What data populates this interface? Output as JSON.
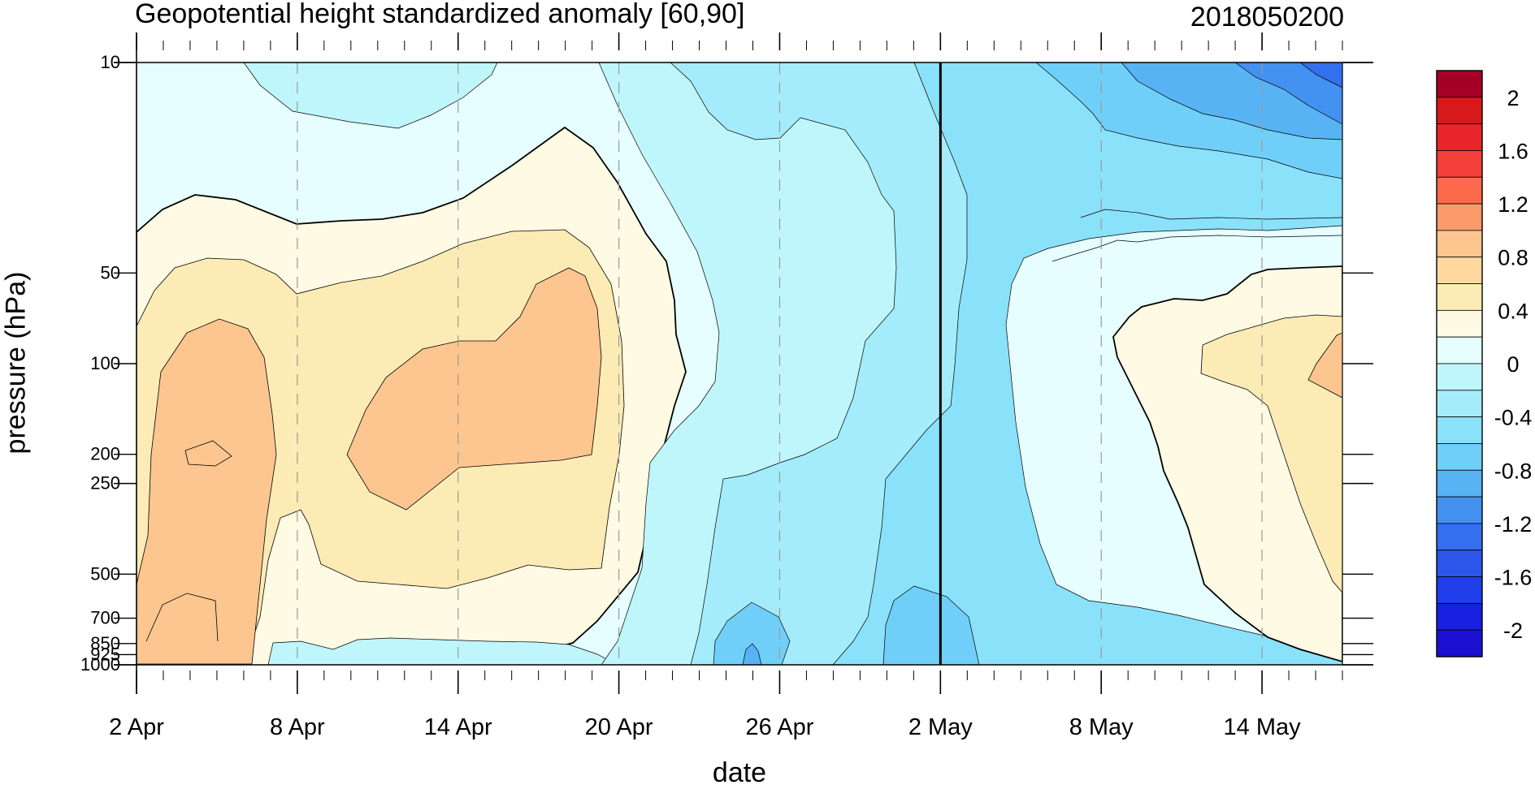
{
  "chart_data": {
    "type": "heatmap",
    "subtype": "filled-contour",
    "title": "Geopotential height standardized anomaly [60,90]",
    "right_title": "2018050200",
    "xlabel": "date",
    "ylabel": "pressure (hPa)",
    "x_tick_labels": [
      "2 Apr",
      "8 Apr",
      "14 Apr",
      "20 Apr",
      "26 Apr",
      "2 May",
      "8 May",
      "14 May"
    ],
    "x_range": [
      "2 Apr",
      "17 May"
    ],
    "y_tick_labels": [
      "10",
      "50",
      "100",
      "200",
      "250",
      "500",
      "700",
      "850",
      "925",
      "1000"
    ],
    "y_scale": "log",
    "y_range": [
      1000,
      10
    ],
    "current_date_marker": "2 May",
    "grid": "dashed vertical lines at labelled dates",
    "colorbar": {
      "position": "right",
      "labels": [
        "2",
        "1.6",
        "1.2",
        "0.8",
        "0.4",
        "0",
        "-0.4",
        "-0.8",
        "-1.2",
        "-1.6",
        "-2"
      ],
      "levels": [
        2.2,
        2.0,
        1.8,
        1.6,
        1.4,
        1.2,
        1.0,
        0.8,
        0.6,
        0.4,
        0.2,
        0.0,
        -0.2,
        -0.4,
        -0.6,
        -0.8,
        -1.0,
        -1.2,
        -1.4,
        -1.6,
        -1.8,
        -2.0,
        -2.2
      ],
      "colors": [
        "#a50026",
        "#d7191c",
        "#e8252b",
        "#f4403a",
        "#fb6a4a",
        "#fc9a6b",
        "#fdc690",
        "#fed89f",
        "#fcebb5",
        "#fffae4",
        "#e6feff",
        "#bff6fc",
        "#a4ecfb",
        "#8ae1fa",
        "#70cff8",
        "#58b3f5",
        "#4391f1",
        "#3470ed",
        "#2a56ea",
        "#1f3de8",
        "#1920e0",
        "#1c10d2"
      ]
    }
  }
}
